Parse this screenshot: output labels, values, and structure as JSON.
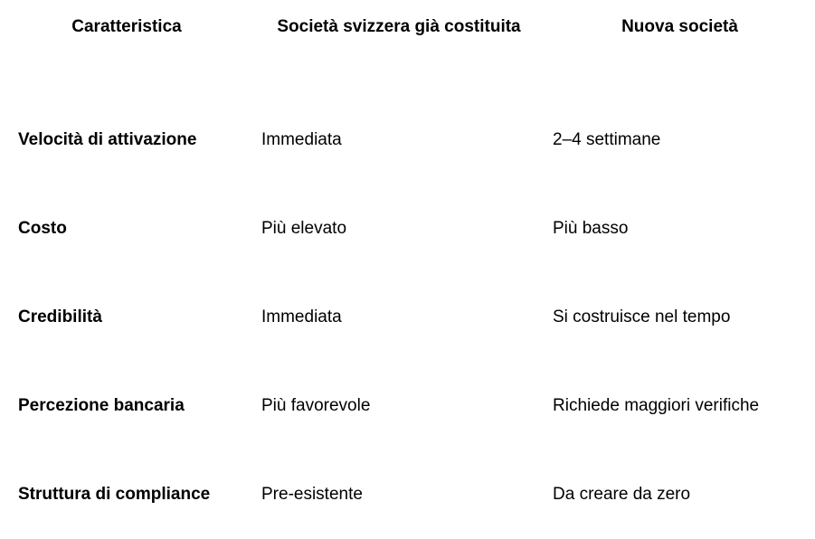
{
  "headers": [
    "Caratteristica",
    "Società svizzera già costituita",
    "Nuova società"
  ],
  "rows": [
    [
      "Velocità di attivazione",
      "Immediata",
      "2–4 settimane"
    ],
    [
      "Costo",
      "Più elevato",
      "Più basso"
    ],
    [
      "Credibilità",
      "Immediata",
      "Si costruisce nel tempo"
    ],
    [
      "Percezione bancaria",
      "Più favorevole",
      "Richiede maggiori verifiche"
    ],
    [
      "Struttura di compliance",
      "Pre-esistente",
      "Da creare da zero"
    ]
  ]
}
